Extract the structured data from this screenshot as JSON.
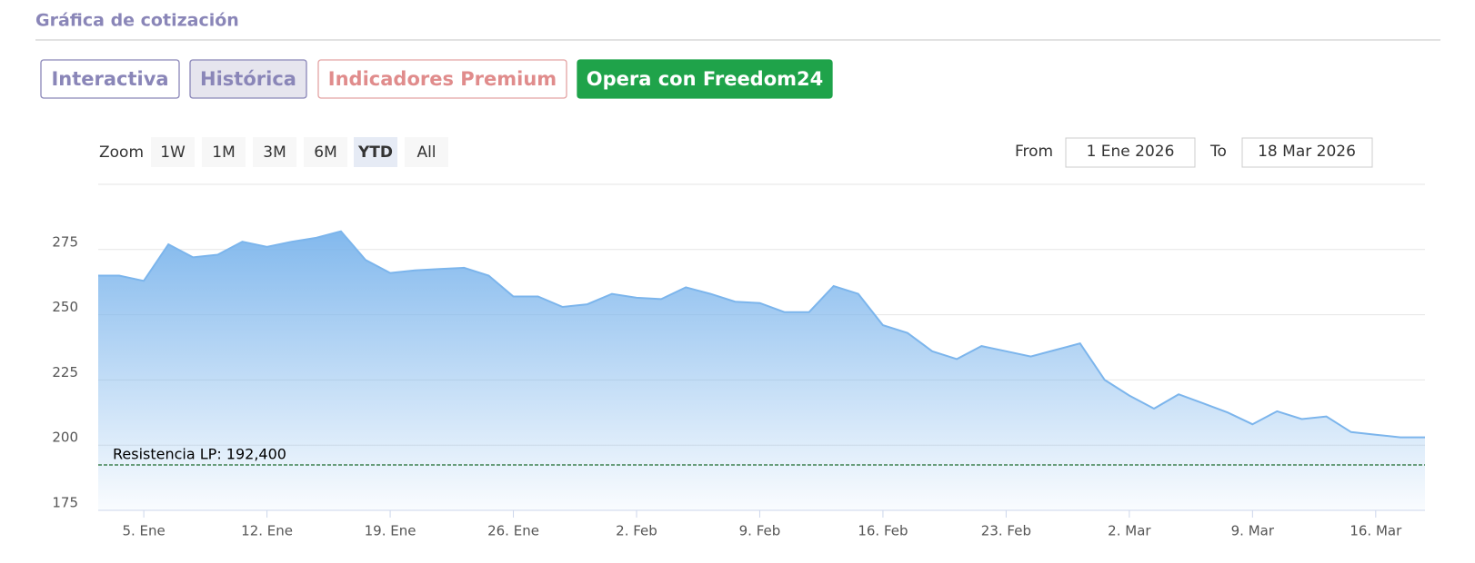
{
  "header": {
    "title": "Gráfica de cotización"
  },
  "tabs": {
    "items": [
      "Interactiva",
      "Histórica",
      "Indicadores Premium",
      "Opera con Freedom24"
    ],
    "selected": 1
  },
  "zoom": {
    "label": "Zoom",
    "options": [
      "1W",
      "1M",
      "3M",
      "6M",
      "YTD",
      "All"
    ],
    "selected": 4
  },
  "range": {
    "from_label": "From",
    "from": "1 Ene 2026",
    "to_label": "To",
    "to": "18 Mar 2026"
  },
  "chart_data": {
    "type": "area",
    "color": "#7cb5ec",
    "grid": true,
    "x": [
      "2026-01-02",
      "2026-01-05",
      "2026-01-06",
      "2026-01-07",
      "2026-01-08",
      "2026-01-09",
      "2026-01-12",
      "2026-01-13",
      "2026-01-14",
      "2026-01-15",
      "2026-01-16",
      "2026-01-19",
      "2026-01-20",
      "2026-01-21",
      "2026-01-22",
      "2026-01-23",
      "2026-01-26",
      "2026-01-27",
      "2026-01-28",
      "2026-01-29",
      "2026-01-30",
      "2026-02-02",
      "2026-02-03",
      "2026-02-04",
      "2026-02-05",
      "2026-02-06",
      "2026-02-09",
      "2026-02-10",
      "2026-02-11",
      "2026-02-12",
      "2026-02-13",
      "2026-02-16",
      "2026-02-17",
      "2026-02-18",
      "2026-02-19",
      "2026-02-20",
      "2026-02-23",
      "2026-02-24",
      "2026-02-25",
      "2026-02-26",
      "2026-02-27",
      "2026-03-02",
      "2026-03-03",
      "2026-03-04",
      "2026-03-05",
      "2026-03-06",
      "2026-03-09",
      "2026-03-10",
      "2026-03-11",
      "2026-03-12",
      "2026-03-13",
      "2026-03-16",
      "2026-03-17",
      "2026-03-18"
    ],
    "values": [
      265,
      263,
      277,
      272,
      273,
      278,
      276,
      278,
      279.5,
      282,
      271,
      266,
      267,
      267.5,
      268,
      265,
      257,
      257,
      253,
      254,
      258,
      256.5,
      256,
      260.5,
      258,
      255,
      254.5,
      251,
      251,
      261,
      258,
      246,
      243,
      236,
      233,
      238,
      236,
      234,
      236.5,
      239,
      225,
      219,
      214,
      219.5,
      216,
      212.5,
      208,
      213,
      210,
      211,
      205,
      204,
      203,
      203
    ],
    "ylim": [
      175,
      300
    ],
    "yticks": [
      175,
      200,
      225,
      250,
      275
    ],
    "xticks": [
      {
        "value": "2026-01-05",
        "label": "5. Ene"
      },
      {
        "value": "2026-01-12",
        "label": "12. Ene"
      },
      {
        "value": "2026-01-19",
        "label": "19. Ene"
      },
      {
        "value": "2026-01-26",
        "label": "26. Ene"
      },
      {
        "value": "2026-02-02",
        "label": "2. Feb"
      },
      {
        "value": "2026-02-09",
        "label": "9. Feb"
      },
      {
        "value": "2026-02-16",
        "label": "16. Feb"
      },
      {
        "value": "2026-02-23",
        "label": "23. Feb"
      },
      {
        "value": "2026-03-02",
        "label": "2. Mar"
      },
      {
        "value": "2026-03-09",
        "label": "9. Mar"
      },
      {
        "value": "2026-03-16",
        "label": "16. Mar"
      }
    ],
    "plot_lines": [
      {
        "value": 192.4,
        "label": "Resistencia LP: 192,400",
        "color": "#1e6b2e"
      }
    ]
  }
}
